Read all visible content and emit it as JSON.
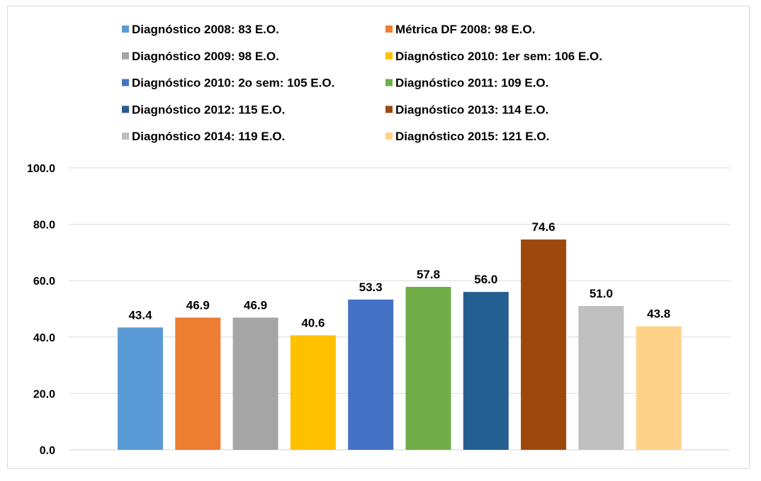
{
  "chart_data": {
    "type": "bar",
    "categories": [
      "Diagnóstico 2008: 83 E.O.",
      "Métrica DF 2008: 98 E.O.",
      "Diagnóstico 2009: 98 E.O.",
      "Diagnóstico 2010: 1er sem: 106 E.O.",
      "Diagnóstico 2010: 2o sem: 105 E.O.",
      "Diagnóstico 2011: 109 E.O.",
      "Diagnóstico 2012: 115 E.O.",
      "Diagnóstico 2013: 114 E.O.",
      "Diagnóstico 2014: 119 E.O.",
      "Diagnóstico 2015: 121 E.O."
    ],
    "values": [
      43.4,
      46.9,
      46.9,
      40.6,
      53.3,
      57.8,
      56.0,
      74.6,
      51.0,
      43.8
    ],
    "value_labels": [
      "43.4",
      "46.9",
      "46.9",
      "40.6",
      "53.3",
      "57.8",
      "56.0",
      "74.6",
      "51.0",
      "43.8"
    ],
    "colors": [
      "#5b9bd5",
      "#ed7d31",
      "#a5a5a5",
      "#ffc000",
      "#4472c4",
      "#70ad47",
      "#255e91",
      "#9e480e",
      "#bfbfbf",
      "#ffd28a"
    ],
    "ylim": [
      0,
      100
    ],
    "yticks": [
      "0.0",
      "20.0",
      "40.0",
      "60.0",
      "80.0",
      "100.0"
    ],
    "ytick_values": [
      0,
      20,
      40,
      60,
      80,
      100
    ],
    "grid": true,
    "legend_position": "top",
    "title": "",
    "xlabel": "",
    "ylabel": ""
  }
}
